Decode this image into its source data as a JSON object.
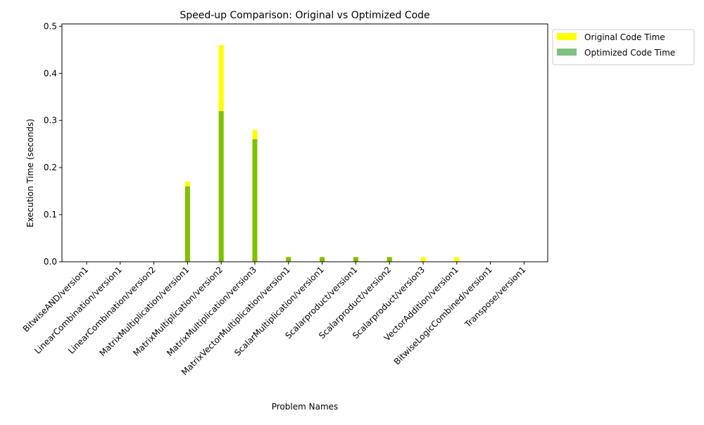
{
  "chart_data": {
    "type": "bar",
    "title": "Speed-up Comparison: Original vs Optimized Code",
    "xlabel": "Problem Names",
    "ylabel": "Execution Time (seconds)",
    "ylim": [
      0,
      0.505
    ],
    "yticks": [
      0.0,
      0.1,
      0.2,
      0.3,
      0.4,
      0.5
    ],
    "ytick_labels": [
      "0.0",
      "0.1",
      "0.2",
      "0.3",
      "0.4",
      "0.5"
    ],
    "grid": false,
    "legend_position": "outside-top-right",
    "categories": [
      "BitwiseAND/version1",
      "LinearCombination/version1",
      "LinearCombination/version2",
      "MatrixMultiplication/version1",
      "MatrixMultiplication/version2",
      "MatrixMultiplication/version3",
      "MatrixVectorMultiplication/version1",
      "ScalarMultiplication/version1",
      "Scalarproduct/version1",
      "Scalarproduct/version2",
      "Scalarproduct/version3",
      "VectorAddition/version1",
      "BitwiseLogicCombined/version1",
      "Transpose/version1"
    ],
    "series": [
      {
        "name": "Original Code Time",
        "color": "#ffff00",
        "values": [
          0.0,
          0.0,
          0.0,
          0.17,
          0.46,
          0.28,
          0.01,
          0.01,
          0.01,
          0.01,
          0.01,
          0.01,
          0.0,
          0.0
        ]
      },
      {
        "name": "Optimized Code Time",
        "color": "#80c080",
        "overlap_color": "#80c000",
        "values": [
          0.0,
          0.0,
          0.0,
          0.16,
          0.32,
          0.26,
          0.01,
          0.01,
          0.01,
          0.01,
          0.0,
          0.0,
          0.0,
          0.0
        ]
      }
    ]
  }
}
